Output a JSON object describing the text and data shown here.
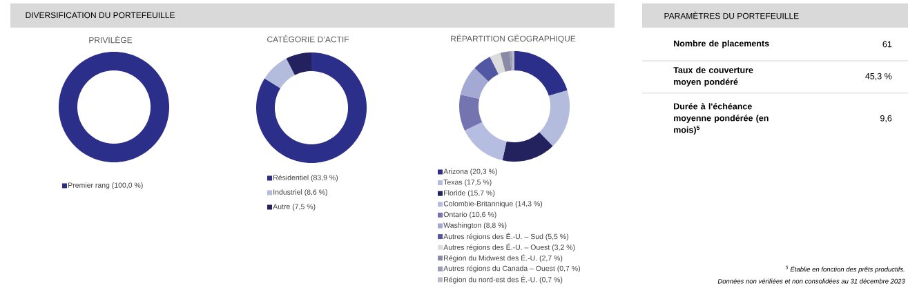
{
  "chart_data": [
    {
      "type": "donut",
      "title": "PRIVILÈGE",
      "annotations": [
        "DIVERSIFICATION DU PORTEFEUILLE"
      ],
      "legend": "bottom",
      "categories": [
        "Premier rang (100,0 %)"
      ],
      "values": [
        100.0
      ],
      "colors": [
        "#2b2f8a"
      ]
    },
    {
      "type": "donut",
      "title": "CATÉGORIE D’ACTIF",
      "legend": "bottom",
      "categories": [
        "Résidentiel (83,9 %)",
        "Industriel (8,6 %)",
        "Autre (7,5 %)"
      ],
      "values": [
        83.9,
        8.6,
        7.5
      ],
      "colors": [
        "#2b2f8a",
        "#b3bcdd",
        "#23225e"
      ]
    },
    {
      "type": "donut",
      "title": "RÉPARTITION GÉOGRAPHIQUE",
      "legend": "bottom",
      "categories": [
        "Arizona (20,3 %)",
        "Texas (17,5 %)",
        "Floride (15,7 %)",
        "Colombie-Britannique (14,3 %)",
        "Ontario (10,6 %)",
        "Washington (8,8 %)",
        "Autres régions des É.-U. – Sud (5,5 %)",
        "Autres régions des É.-U. – Ouest (3,2 %)",
        "Région du Midwest des É.-U. (2,7 %)",
        "Autres régions du Canada – Ouest (0,7 %)",
        "Région du nord-est des É.-U. (0,7 %)"
      ],
      "values": [
        20.3,
        17.5,
        15.7,
        14.3,
        10.6,
        8.8,
        5.5,
        3.2,
        2.7,
        0.7,
        0.7
      ],
      "colors": [
        "#2b2f8a",
        "#b3bcdd",
        "#23225e",
        "#b5bde0",
        "#7475b0",
        "#a3a9d3",
        "#5257a3",
        "#dcdcdc",
        "#8a8aa6",
        "#9c9cb4",
        "#b8b8c8"
      ]
    },
    {
      "type": "other",
      "title": "PARAMÈTRES DU PORTEFEUILLE",
      "categories": [
        "Nombre de placements",
        "Taux de couverture moyen pondéré",
        "Durée à l'échéance moyenne pondérée (en mois)$^{5}$"
      ],
      "value_labels": [
        "61",
        "45,3 %",
        "9,6"
      ],
      "annotations": [
        "$^{5}$ Établie en fonction des prêts productifs.",
        "Données non vérifiées et non consolidées au 31 décembre 2023"
      ]
    }
  ]
}
